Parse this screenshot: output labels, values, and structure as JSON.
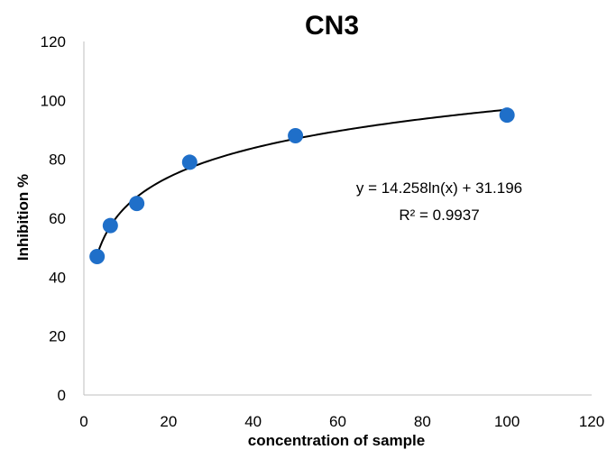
{
  "chart_data": {
    "type": "scatter",
    "title": "CN3",
    "xlabel": "concentration of sample",
    "ylabel": "Inhibition %",
    "xlim": [
      0,
      120
    ],
    "ylim": [
      0,
      120
    ],
    "x_ticks": [
      0,
      20,
      40,
      60,
      80,
      100,
      120
    ],
    "y_ticks": [
      0,
      20,
      40,
      60,
      80,
      100,
      120
    ],
    "x_tick_labels": [
      "0",
      "20",
      "40",
      "60",
      "80",
      "100",
      "120"
    ],
    "y_tick_labels": [
      "0",
      "20",
      "40",
      "60",
      "80",
      "100",
      "120"
    ],
    "grid": false,
    "legend": "none",
    "series": [
      {
        "x": [
          3.125,
          6.25,
          12.5,
          25,
          50,
          100
        ],
        "y": [
          47,
          57.5,
          65,
          79,
          88,
          95
        ],
        "color": "#1F6FC9"
      }
    ],
    "trendline": {
      "kind": "logarithmic",
      "a": 14.258,
      "b": 31.196,
      "x_range": [
        3.125,
        100
      ],
      "color": "#000000"
    },
    "annotations": [
      "y = 14.258ln(x) + 31.196",
      "R² = 0.9937"
    ]
  }
}
